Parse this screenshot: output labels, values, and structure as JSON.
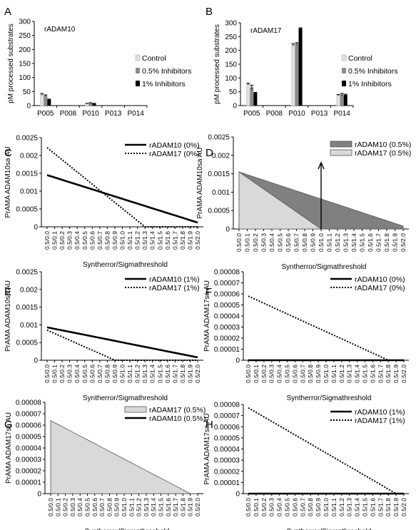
{
  "chart_data": [
    {
      "panel": "A",
      "type": "bar",
      "title": "rADAM10",
      "ylabel": "pM processed substrates",
      "ylim": [
        0,
        300
      ],
      "yticks": [
        "0",
        "50",
        "100",
        "150",
        "200",
        "250",
        "300"
      ],
      "categories": [
        "P005",
        "P008",
        "P010",
        "P013",
        "P014"
      ],
      "legend_position": "right",
      "series": [
        {
          "name": "Control",
          "color": "#e0e0e0",
          "values": [
            40,
            0,
            7,
            0,
            0
          ],
          "errors": [
            3,
            0,
            1,
            0,
            0
          ]
        },
        {
          "name": "0.5% Inhibitors",
          "color": "#8c8c8c",
          "values": [
            36,
            0,
            9,
            0,
            0
          ],
          "errors": [
            2,
            0,
            1,
            0,
            0
          ]
        },
        {
          "name": "1% Inhibitors",
          "color": "#000000",
          "values": [
            22,
            0,
            7,
            0,
            0
          ],
          "errors": [
            1,
            0,
            1,
            0,
            0
          ]
        }
      ]
    },
    {
      "panel": "B",
      "type": "bar",
      "title": "rADAM17",
      "ylabel": "pM processed substrates",
      "ylim": [
        0,
        300
      ],
      "yticks": [
        "0",
        "50",
        "100",
        "150",
        "200",
        "250",
        "300"
      ],
      "categories": [
        "P005",
        "P008",
        "P010",
        "P013",
        "P014"
      ],
      "legend_position": "right",
      "series": [
        {
          "name": "Control",
          "color": "#e0e0e0",
          "values": [
            78,
            0,
            220,
            0,
            38
          ],
          "errors": [
            3,
            0,
            4,
            0,
            2
          ]
        },
        {
          "name": "0.5% Inhibitors",
          "color": "#8c8c8c",
          "values": [
            66,
            0,
            224,
            0,
            40
          ],
          "errors": [
            8,
            0,
            4,
            0,
            4
          ]
        },
        {
          "name": "1% Inhibitors",
          "color": "#000000",
          "values": [
            46,
            0,
            280,
            0,
            39
          ],
          "errors": [
            2,
            0,
            2,
            0,
            2
          ]
        }
      ]
    },
    {
      "panel": "C",
      "type": "line",
      "xlabel": "Syntherror/Sigmathreshold",
      "ylabel": "PrAMA ADAM10sa AU",
      "ylim": [
        0,
        0.0025
      ],
      "yticks": [
        "0",
        "0.0005",
        "0.001",
        "0.0015",
        "0.002",
        "0.0025"
      ],
      "legend_position": "top-right",
      "series": [
        {
          "name": "rADAM10 (0%)",
          "style": "solid",
          "start": 0.00145,
          "end": 0.00012,
          "zero_at": null
        },
        {
          "name": "rADAM17 (0%)",
          "style": "dotted",
          "start": 0.00222,
          "end": 0,
          "zero_at": 13
        }
      ]
    },
    {
      "panel": "D",
      "type": "area",
      "xlabel": "Syntherror/Sigmathreshold",
      "ylabel": "PrAMA ADAM10sa AU",
      "ylim": [
        0,
        0.0025
      ],
      "yticks": [
        "0",
        "0.0005",
        "0.001",
        "0.0015",
        "0.002",
        "0.0025"
      ],
      "legend_position": "top-right",
      "annotation": "upward arrow at 0.5/1.0",
      "series": [
        {
          "name": "rADAM10 (0.5%)",
          "fill": "#808080",
          "start": 0.00155,
          "end": 8e-05,
          "zero_at": null
        },
        {
          "name": "rADAM17 (0.5%)",
          "fill": "#d9d9d9",
          "start": 0.00155,
          "end": 0,
          "zero_at": 10
        }
      ]
    },
    {
      "panel": "E",
      "type": "line",
      "xlabel": "Syntherror/Sigmathreshold",
      "ylabel": "PrAMA ADAM10sa AU",
      "ylim": [
        0,
        0.0025
      ],
      "yticks": [
        "0",
        "0.0005",
        "0.001",
        "0.0015",
        "0.002",
        "0.0025"
      ],
      "legend_position": "top-right",
      "series": [
        {
          "name": "rADAM10 (1%)",
          "style": "solid",
          "start": 0.00093,
          "end": 8e-05,
          "zero_at": null
        },
        {
          "name": "rADAM17 (1%)",
          "style": "dotted",
          "start": 0.00085,
          "end": 0,
          "zero_at": 9
        }
      ]
    },
    {
      "panel": "F",
      "type": "line",
      "xlabel": "Syntherror/Sigmathreshold",
      "ylabel": "PrAMA ADAM17sa AU",
      "ylim": [
        0,
        8e-05
      ],
      "yticks": [
        "0",
        "0.00001",
        "0.00002",
        "0.00003",
        "0.00004",
        "0.00005",
        "0.00006",
        "0.00007",
        "0.00008"
      ],
      "legend_position": "top-right",
      "series": [
        {
          "name": "rADAM10 (0%)",
          "style": "solid",
          "start": 0,
          "end": 0,
          "zero_at": 0
        },
        {
          "name": "rADAM17 (0%)",
          "style": "dotted",
          "start": 5.8e-05,
          "end": 0,
          "zero_at": 18
        }
      ]
    },
    {
      "panel": "G",
      "type": "area",
      "xlabel": "Syntherror/Sigmathreshold",
      "ylabel": "PrAMA ADAM17sa AU",
      "ylim": [
        0,
        8e-05
      ],
      "yticks": [
        "0",
        "0.00001",
        "0.00002",
        "0.00003",
        "0.00004",
        "0.00005",
        "0.00006",
        "0.00007",
        "0.00008"
      ],
      "legend_position": "top-right",
      "series": [
        {
          "name": "rADAM17 (0.5%)",
          "fill": "#d9d9d9",
          "start": 6.4e-05,
          "end": 0,
          "zero_at": 19
        },
        {
          "name": "rADAM10 (0.5%)",
          "fill": "none",
          "start": 0,
          "end": 0,
          "zero_at": 0
        }
      ]
    },
    {
      "panel": "H",
      "type": "line",
      "xlabel": "Syntherror/Sigmathreshold",
      "ylabel": "PrAMA ADAM17sa AU",
      "ylim": [
        0,
        8e-05
      ],
      "yticks": [
        "0",
        "0.00001",
        "0.00002",
        "0.00003",
        "0.00004",
        "0.00005",
        "0.00006",
        "0.00007",
        "0.00008"
      ],
      "legend_position": "top-right",
      "series": [
        {
          "name": "rADAM10 (1%)",
          "style": "solid",
          "start": 0,
          "end": 0,
          "zero_at": 0
        },
        {
          "name": "rADAM17 (1%)",
          "style": "dotted",
          "start": 7.7e-05,
          "end": 0,
          "zero_at": 19
        }
      ]
    }
  ],
  "x_tick_labels": [
    "0.5/0.0",
    "0.5/0.1",
    "0.5/0.2",
    "0.5/0.3",
    "0.5/0.4",
    "0.5/0.5",
    "0.5/0.6",
    "0.5/0.7",
    "0.5/0.8",
    "0.5/0.9",
    "0.5/1.0",
    "0.5/1.1",
    "0.5/1.2",
    "0.5/1.3",
    "0.5/1.4",
    "0.5/1.5",
    "0.5/1.6",
    "0.5/1.7",
    "0.5/1.8",
    "0.5/1.9",
    "0.5/2.0"
  ]
}
